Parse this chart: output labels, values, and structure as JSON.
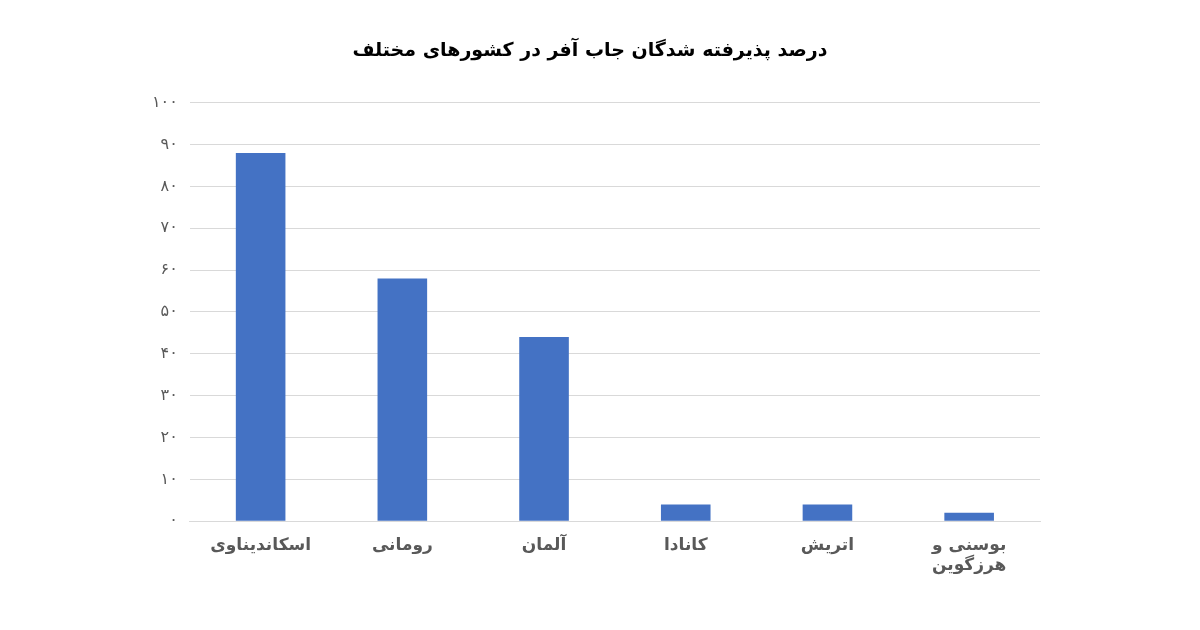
{
  "chart_data": {
    "type": "bar",
    "title": "درصد پذیرفته شدگان جاب آفر در کشورهای مختلف",
    "categories": [
      "اسکاندیناوی",
      "رومانی",
      "آلمان",
      "کانادا",
      "اتریش",
      "بوسنی و هرزگوین"
    ],
    "values": [
      88,
      58,
      44,
      4,
      4,
      2
    ],
    "color": "#4472c4",
    "ylim": [
      0,
      100
    ],
    "yticks": [
      {
        "value": 0,
        "label": "۰"
      },
      {
        "value": 10,
        "label": "۱۰"
      },
      {
        "value": 20,
        "label": "۲۰"
      },
      {
        "value": 30,
        "label": "۳۰"
      },
      {
        "value": 40,
        "label": "۴۰"
      },
      {
        "value": 50,
        "label": "۵۰"
      },
      {
        "value": 60,
        "label": "۶۰"
      },
      {
        "value": 70,
        "label": "۷۰"
      },
      {
        "value": 80,
        "label": "۸۰"
      },
      {
        "value": 90,
        "label": "۹۰"
      },
      {
        "value": 100,
        "label": "۱۰۰"
      }
    ],
    "grid": "y",
    "legend": false
  }
}
